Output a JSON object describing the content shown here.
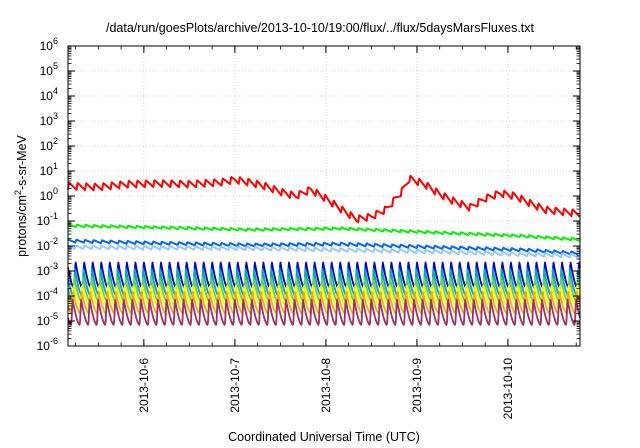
{
  "chart_data": {
    "type": "line",
    "title": "/data/run/goesPlots/archive/2013-10-10/19:00/flux/../flux/5daysMarsFluxes.txt",
    "xlabel": "Coordinated Universal Time (UTC)",
    "ylabel": {
      "prefix": "protons/cm",
      "superscript": "2",
      "suffix": "-s-sr-MeV"
    },
    "yscale": "log",
    "ylim": [
      1e-06,
      1000000.0
    ],
    "y_ticks": [
      {
        "base": "10",
        "exp": "-6"
      },
      {
        "base": "10",
        "exp": "-5"
      },
      {
        "base": "10",
        "exp": "-4"
      },
      {
        "base": "10",
        "exp": "-3"
      },
      {
        "base": "10",
        "exp": "-2"
      },
      {
        "base": "10",
        "exp": "-1"
      },
      {
        "base": "10",
        "exp": "0"
      },
      {
        "base": "10",
        "exp": "1"
      },
      {
        "base": "10",
        "exp": "2"
      },
      {
        "base": "10",
        "exp": "3"
      },
      {
        "base": "10",
        "exp": "4"
      },
      {
        "base": "10",
        "exp": "5"
      },
      {
        "base": "10",
        "exp": "6"
      }
    ],
    "xlim": [
      "2013-10-05 04:00",
      "2013-10-10 19:00"
    ],
    "x_ticks": [
      "2013-10-6",
      "2013-10-7",
      "2013-10-8",
      "2013-10-9",
      "2013-10-10"
    ],
    "x_tick_dates": [
      "2013-10-06 00:00",
      "2013-10-07 00:00",
      "2013-10-08 00:00",
      "2013-10-09 00:00",
      "2013-10-10 00:00"
    ],
    "grid": true,
    "legend": "none",
    "sawtooth_cycles": 60,
    "series": [
      {
        "color": "#ff0000",
        "style": "sawtooth",
        "amplitude_decades": 0.28,
        "values": [
          [
            "2013-10-05 04:00",
            2.5
          ],
          [
            "2013-10-05 12:00",
            2.3
          ],
          [
            "2013-10-05 20:00",
            3.0
          ],
          [
            "2013-10-06 04:00",
            3.2
          ],
          [
            "2013-10-06 12:00",
            3.0
          ],
          [
            "2013-10-06 20:00",
            3.5
          ],
          [
            "2013-10-07 00:00",
            4.5
          ],
          [
            "2013-10-07 04:00",
            3.5
          ],
          [
            "2013-10-07 08:00",
            2.5
          ],
          [
            "2013-10-07 12:00",
            1.5
          ],
          [
            "2013-10-07 16:00",
            1.0
          ],
          [
            "2013-10-07 20:00",
            1.8
          ],
          [
            "2013-10-08 00:00",
            0.8
          ],
          [
            "2013-10-08 04:00",
            0.3
          ],
          [
            "2013-10-08 08:00",
            0.12
          ],
          [
            "2013-10-08 12:00",
            0.15
          ],
          [
            "2013-10-08 16:00",
            0.3
          ],
          [
            "2013-10-08 20:00",
            1.5
          ],
          [
            "2013-10-08 22:00",
            5.0
          ],
          [
            "2013-10-09 02:00",
            3.0
          ],
          [
            "2013-10-09 06:00",
            1.2
          ],
          [
            "2013-10-09 10:00",
            0.6
          ],
          [
            "2013-10-09 14:00",
            0.35
          ],
          [
            "2013-10-09 18:00",
            0.8
          ],
          [
            "2013-10-09 22:00",
            1.3
          ],
          [
            "2013-10-10 02:00",
            1.0
          ],
          [
            "2013-10-10 06:00",
            0.5
          ],
          [
            "2013-10-10 10:00",
            0.28
          ],
          [
            "2013-10-10 19:00",
            0.2
          ]
        ]
      },
      {
        "color": "#00ee00",
        "style": "sawtooth",
        "amplitude_decades": 0.1,
        "values": [
          [
            "2013-10-05 04:00",
            0.065
          ],
          [
            "2013-10-06 04:00",
            0.055
          ],
          [
            "2013-10-07 04:00",
            0.045
          ],
          [
            "2013-10-08 04:00",
            0.05
          ],
          [
            "2013-10-09 04:00",
            0.035
          ],
          [
            "2013-10-10 04:00",
            0.025
          ],
          [
            "2013-10-10 19:00",
            0.018
          ]
        ]
      },
      {
        "color": "#0066ff",
        "style": "sawtooth",
        "amplitude_decades": 0.12,
        "values": [
          [
            "2013-10-05 04:00",
            0.016
          ],
          [
            "2013-10-06 04:00",
            0.013
          ],
          [
            "2013-10-07 04:00",
            0.011
          ],
          [
            "2013-10-08 04:00",
            0.012
          ],
          [
            "2013-10-09 04:00",
            0.009
          ],
          [
            "2013-10-10 04:00",
            0.007
          ],
          [
            "2013-10-10 19:00",
            0.005
          ]
        ]
      },
      {
        "color": "#9ec8f0",
        "style": "sawtooth",
        "amplitude_decades": 0.15,
        "values": [
          [
            "2013-10-05 04:00",
            0.009
          ],
          [
            "2013-10-07 04:00",
            0.008
          ],
          [
            "2013-10-09 04:00",
            0.006
          ],
          [
            "2013-10-10 19:00",
            0.004
          ]
        ]
      },
      {
        "color": "#0000cc",
        "style": "spiky",
        "low": 0.0002,
        "high": 0.0025,
        "values": [
          [
            "2013-10-05 04:00",
            0.0007
          ],
          [
            "2013-10-10 19:00",
            0.0007
          ]
        ]
      },
      {
        "color": "#00aaaa",
        "style": "spiky",
        "low": 0.0001,
        "high": 0.0012,
        "values": [
          [
            "2013-10-05 04:00",
            0.00035
          ],
          [
            "2013-10-10 19:00",
            0.00035
          ]
        ]
      },
      {
        "color": "#66cc66",
        "style": "spiky",
        "low": 6e-05,
        "high": 0.0006,
        "values": [
          [
            "2013-10-05 04:00",
            0.0002
          ],
          [
            "2013-10-10 19:00",
            0.0002
          ]
        ]
      },
      {
        "color": "#ffff00",
        "style": "spiky",
        "low": 4e-05,
        "high": 0.0003,
        "values": [
          [
            "2013-10-05 04:00",
            0.0001
          ],
          [
            "2013-10-10 19:00",
            0.0001
          ]
        ]
      },
      {
        "color": "#ffaa00",
        "style": "spiky",
        "low": 2e-05,
        "high": 0.00015,
        "values": [
          [
            "2013-10-05 04:00",
            6e-05
          ],
          [
            "2013-10-10 19:00",
            6e-05
          ]
        ]
      },
      {
        "color": "#993366",
        "style": "spiky",
        "low": 7e-06,
        "high": 8e-05,
        "values": [
          [
            "2013-10-05 04:00",
            2e-05
          ],
          [
            "2013-10-10 19:00",
            2e-05
          ]
        ]
      }
    ]
  }
}
